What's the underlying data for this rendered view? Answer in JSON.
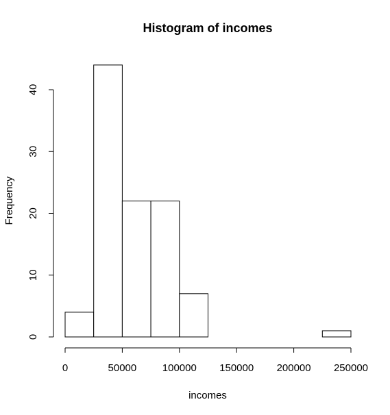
{
  "chart_data": {
    "type": "bar",
    "title": "Histogram of incomes",
    "xlabel": "incomes",
    "ylabel": "Frequency",
    "bins": [
      {
        "start": 0,
        "end": 25000,
        "count": 4
      },
      {
        "start": 25000,
        "end": 50000,
        "count": 44
      },
      {
        "start": 50000,
        "end": 75000,
        "count": 22
      },
      {
        "start": 75000,
        "end": 100000,
        "count": 22
      },
      {
        "start": 100000,
        "end": 125000,
        "count": 7
      },
      {
        "start": 125000,
        "end": 150000,
        "count": 0
      },
      {
        "start": 150000,
        "end": 175000,
        "count": 0
      },
      {
        "start": 175000,
        "end": 200000,
        "count": 0
      },
      {
        "start": 200000,
        "end": 225000,
        "count": 0
      },
      {
        "start": 225000,
        "end": 250000,
        "count": 1
      }
    ],
    "xlim": [
      0,
      250000
    ],
    "ylim": [
      0,
      44
    ],
    "x_ticks": [
      0,
      50000,
      100000,
      150000,
      200000,
      250000
    ],
    "y_ticks": [
      0,
      10,
      20,
      30,
      40
    ],
    "grid": false
  }
}
